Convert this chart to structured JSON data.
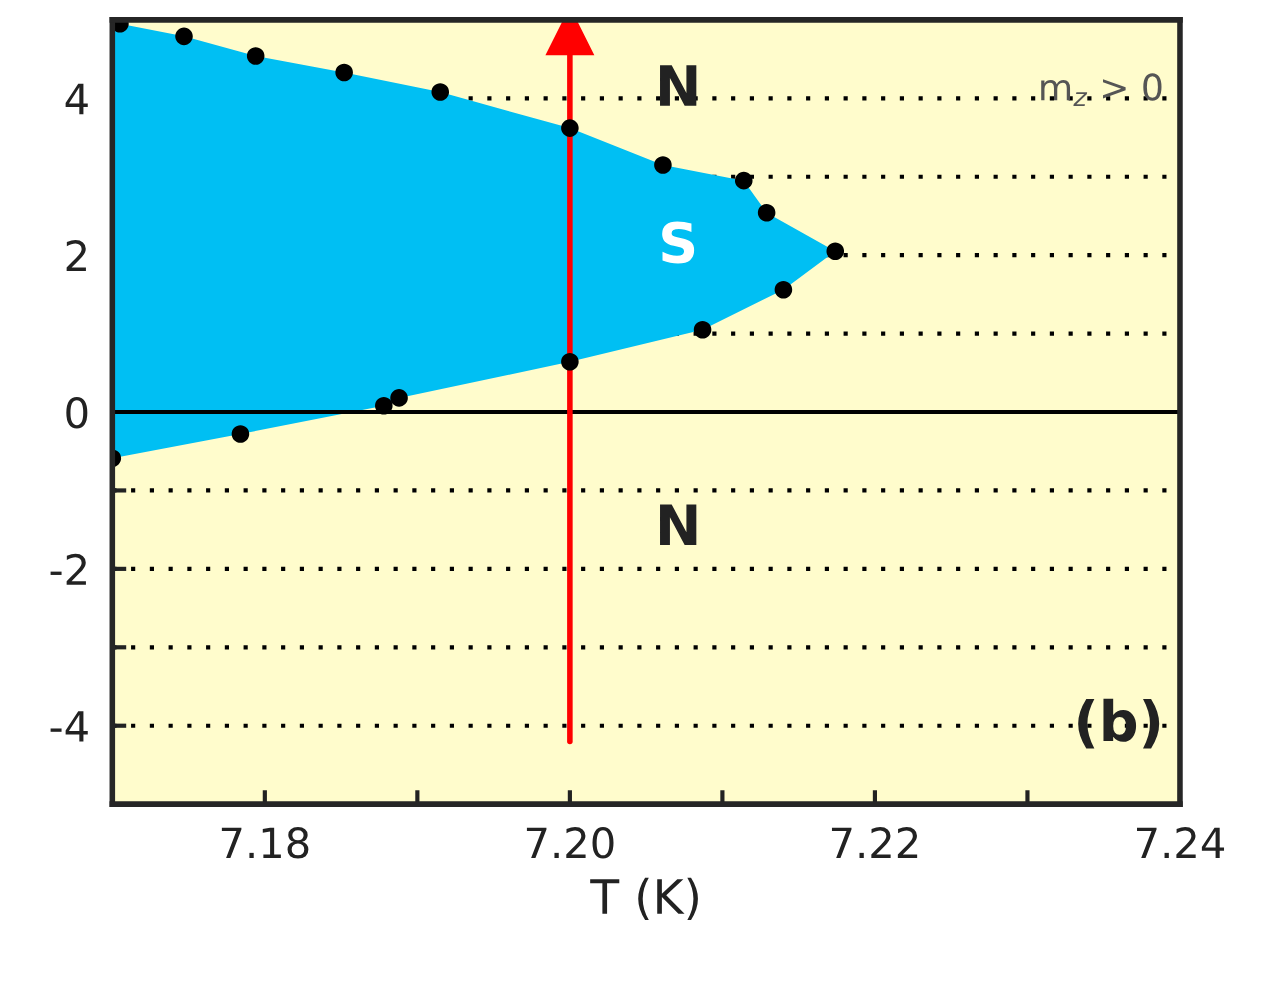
{
  "chart_data": {
    "type": "scatter",
    "xlabel": "T (K)",
    "xlim": [
      7.17,
      7.24
    ],
    "ylim": [
      -5,
      5
    ],
    "xticks": [
      {
        "value": 7.17,
        "label": null
      },
      {
        "value": 7.18,
        "label": "7.18"
      },
      {
        "value": 7.19,
        "label": null
      },
      {
        "value": 7.2,
        "label": "7.20"
      },
      {
        "value": 7.21,
        "label": null
      },
      {
        "value": 7.22,
        "label": "7.22"
      },
      {
        "value": 7.23,
        "label": null
      },
      {
        "value": 7.24,
        "label": "7.24"
      }
    ],
    "yticks": [
      {
        "value": -4,
        "label": "-4"
      },
      {
        "value": -3,
        "label": null
      },
      {
        "value": -2,
        "label": "-2"
      },
      {
        "value": -1,
        "label": null
      },
      0,
      {
        "value": 1,
        "label": null
      },
      2,
      {
        "value": 3,
        "label": null
      },
      4
    ],
    "grid": "y",
    "marker": "circle",
    "series": [
      {
        "color": "#000000",
        "x": [
          7.1705,
          7.1747,
          7.1794,
          7.1852,
          7.1915,
          7.2,
          7.2061,
          7.2114,
          7.2129,
          7.2174,
          7.214,
          7.2087,
          7.2,
          7.1888,
          7.1878,
          7.1784,
          7.17
        ],
        "values": [
          4.95,
          4.79,
          4.54,
          4.33,
          4.08,
          3.62,
          3.15,
          2.95,
          2.54,
          2.05,
          1.56,
          1.05,
          0.64,
          0.18,
          0.08,
          -0.28,
          -0.59
        ]
      },
      {
        "type": "line",
        "color": "#ff0000",
        "marker": "triangle",
        "x": [
          7.2,
          7.2
        ],
        "values": [
          -4.2,
          4.85
        ]
      }
    ],
    "ref_lines": [
      {
        "axis": "y",
        "value": 0,
        "color": "#000000",
        "line_style": "solid"
      }
    ],
    "annotations": [
      "N",
      "S",
      "N",
      "m$_{z}$ > 0",
      "(b)"
    ]
  }
}
